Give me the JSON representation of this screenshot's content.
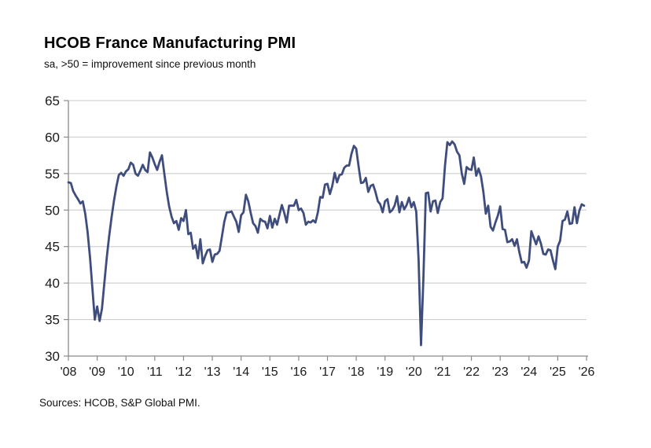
{
  "header": {
    "title": "HCOB France Manufacturing PMI",
    "subtitle": "sa, >50 = improvement since previous month"
  },
  "footer": {
    "source": "Sources: HCOB, S&P Global PMI."
  },
  "chart_data": {
    "type": "line",
    "title": "HCOB France Manufacturing PMI",
    "subtitle": "sa, >50 = improvement since previous month",
    "source": "Sources: HCOB, S&P Global PMI.",
    "frequency": "monthly",
    "x_start": "2008-01",
    "x_end": "2025-12",
    "ylim": [
      30,
      65
    ],
    "yticks": [
      65,
      60,
      55,
      50,
      45,
      40,
      35,
      30
    ],
    "xticks": [
      "'08",
      "'09",
      "'10",
      "'11",
      "'12",
      "'13",
      "'14",
      "'15",
      "'16",
      "'17",
      "'18",
      "'19",
      "'20",
      "'21",
      "'22",
      "'23",
      "'24",
      "'25",
      "'26"
    ],
    "grid": "horizontal",
    "legend": "none",
    "line_color": "#3f4d7d",
    "grid_color": "#c8c8c8",
    "axis_color": "#8a8a8a",
    "text_color": "#1a1a1a",
    "series": [
      {
        "name": "France Manufacturing PMI",
        "values": [
          53.8,
          53.7,
          52.6,
          52.0,
          51.5,
          50.9,
          51.2,
          49.5,
          47.0,
          43.5,
          39.3,
          35.0,
          36.8,
          34.8,
          36.5,
          40.1,
          43.5,
          46.5,
          49.0,
          51.3,
          53.2,
          54.8,
          55.1,
          54.7,
          55.3,
          55.6,
          56.5,
          56.2,
          55.0,
          54.7,
          55.4,
          56.2,
          55.5,
          55.2,
          57.9,
          57.2,
          56.3,
          55.5,
          56.6,
          57.5,
          55.0,
          52.5,
          50.5,
          49.1,
          48.2,
          48.5,
          47.3,
          48.9,
          48.5,
          50.0,
          46.7,
          46.9,
          44.7,
          45.2,
          43.4,
          46.0,
          42.7,
          43.7,
          44.5,
          44.6,
          42.9,
          43.9,
          44.0,
          44.4,
          46.4,
          48.4,
          49.7,
          49.7,
          49.8,
          49.1,
          48.4,
          47.0,
          49.3,
          49.7,
          52.1,
          51.2,
          49.6,
          48.2,
          47.8,
          46.9,
          48.8,
          48.5,
          48.4,
          47.5,
          49.2,
          47.6,
          48.8,
          48.0,
          49.4,
          50.7,
          49.6,
          48.3,
          50.6,
          50.6,
          50.6,
          51.4,
          50.0,
          50.2,
          49.6,
          48.0,
          48.4,
          48.3,
          48.6,
          48.3,
          49.7,
          51.8,
          51.7,
          53.5,
          53.6,
          52.2,
          53.3,
          55.1,
          53.8,
          54.8,
          54.9,
          55.8,
          56.1,
          56.1,
          57.7,
          58.8,
          58.4,
          55.9,
          53.7,
          53.8,
          54.4,
          52.5,
          53.3,
          53.5,
          52.5,
          51.2,
          50.8,
          49.7,
          51.2,
          51.5,
          49.7,
          50.0,
          50.6,
          51.9,
          49.7,
          51.1,
          50.1,
          50.7,
          51.7,
          50.4,
          51.1,
          49.8,
          43.2,
          31.5,
          40.6,
          52.3,
          52.4,
          49.8,
          51.2,
          51.3,
          49.6,
          51.1,
          51.6,
          56.1,
          59.3,
          58.9,
          59.4,
          59.0,
          58.0,
          57.5,
          55.0,
          53.6,
          55.9,
          55.6,
          55.5,
          57.2,
          54.7,
          55.7,
          54.6,
          52.5,
          49.5,
          50.6,
          47.7,
          47.2,
          48.3,
          49.2,
          50.5,
          47.4,
          47.3,
          45.6,
          45.7,
          46.0,
          45.1,
          46.0,
          44.2,
          42.8,
          42.9,
          42.1,
          43.1,
          47.1,
          46.2,
          45.3,
          46.4,
          45.4,
          44.0,
          43.9,
          44.6,
          44.5,
          43.1,
          41.9,
          45.0,
          45.8,
          48.5,
          48.7,
          49.8,
          48.1,
          48.2,
          50.4,
          48.2,
          49.9,
          50.8,
          50.6
        ]
      }
    ]
  }
}
